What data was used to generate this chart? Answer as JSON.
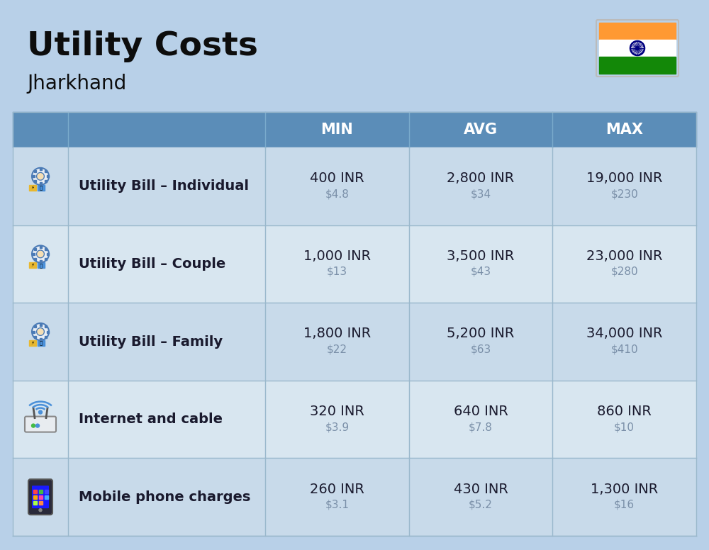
{
  "title": "Utility Costs",
  "subtitle": "Jharkhand",
  "background_color": "#b8d0e8",
  "header_bg_color": "#5b8db8",
  "header_text_color": "#ffffff",
  "row_bg_color_1": "#c8daea",
  "row_bg_color_2": "#d8e6f0",
  "col_separator_color": "#9ab8cc",
  "columns": [
    "MIN",
    "AVG",
    "MAX"
  ],
  "rows": [
    {
      "label": "Utility Bill – Individual",
      "icon": "utility",
      "min_inr": "400 INR",
      "min_usd": "$4.8",
      "avg_inr": "2,800 INR",
      "avg_usd": "$34",
      "max_inr": "19,000 INR",
      "max_usd": "$230"
    },
    {
      "label": "Utility Bill – Couple",
      "icon": "utility",
      "min_inr": "1,000 INR",
      "min_usd": "$13",
      "avg_inr": "3,500 INR",
      "avg_usd": "$43",
      "max_inr": "23,000 INR",
      "max_usd": "$280"
    },
    {
      "label": "Utility Bill – Family",
      "icon": "utility",
      "min_inr": "1,800 INR",
      "min_usd": "$22",
      "avg_inr": "5,200 INR",
      "avg_usd": "$63",
      "max_inr": "34,000 INR",
      "max_usd": "$410"
    },
    {
      "label": "Internet and cable",
      "icon": "internet",
      "min_inr": "320 INR",
      "min_usd": "$3.9",
      "avg_inr": "640 INR",
      "avg_usd": "$7.8",
      "max_inr": "860 INR",
      "max_usd": "$10"
    },
    {
      "label": "Mobile phone charges",
      "icon": "mobile",
      "min_inr": "260 INR",
      "min_usd": "$3.1",
      "avg_inr": "430 INR",
      "avg_usd": "$5.2",
      "max_inr": "1,300 INR",
      "max_usd": "$16"
    }
  ],
  "title_fontsize": 34,
  "subtitle_fontsize": 20,
  "header_fontsize": 15,
  "label_fontsize": 14,
  "value_fontsize": 14,
  "usd_fontsize": 11,
  "inr_color": "#1a1a2e",
  "usd_color": "#7a8fa8",
  "label_color": "#1a1a2e",
  "india_flag_colors": [
    "#FF9933",
    "#FFFFFF",
    "#138808"
  ],
  "flag_border_color": "#cccccc"
}
